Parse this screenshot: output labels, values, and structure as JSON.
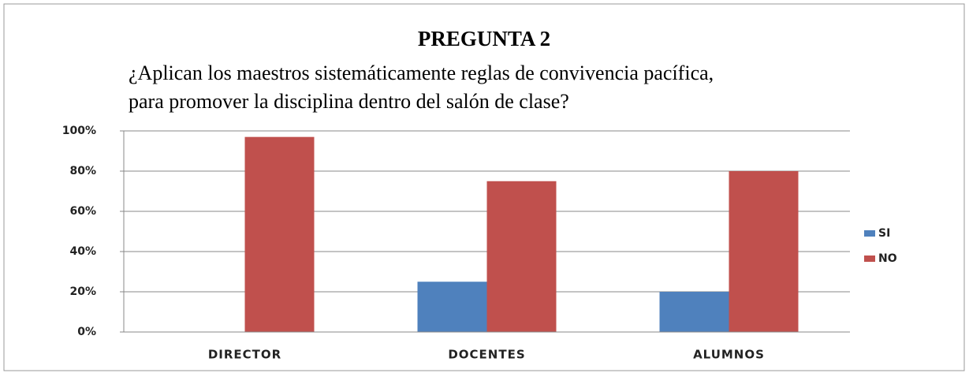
{
  "chart_data": {
    "type": "bar",
    "title": "PREGUNTA 2",
    "subtitle": [
      "¿Aplican los maestros sistemáticamente reglas de convivencia pacífica,",
      "para promover la disciplina dentro del salón de clase?"
    ],
    "categories": [
      "DIRECTOR",
      "DOCENTES",
      "ALUMNOS"
    ],
    "series": [
      {
        "name": "SI",
        "color": "#4f81bd",
        "values": [
          0,
          25,
          20
        ]
      },
      {
        "name": "NO",
        "color": "#c0504d",
        "values": [
          97,
          75,
          80
        ]
      }
    ],
    "ylim": [
      0,
      100
    ],
    "yticks": [
      {
        "value": 0,
        "label": "0%"
      },
      {
        "value": 20,
        "label": "20%"
      },
      {
        "value": 40,
        "label": "40%"
      },
      {
        "value": 60,
        "label": "60%"
      },
      {
        "value": 80,
        "label": "80%"
      },
      {
        "value": 100,
        "label": "100%"
      }
    ],
    "grid": true,
    "legend": "right"
  }
}
